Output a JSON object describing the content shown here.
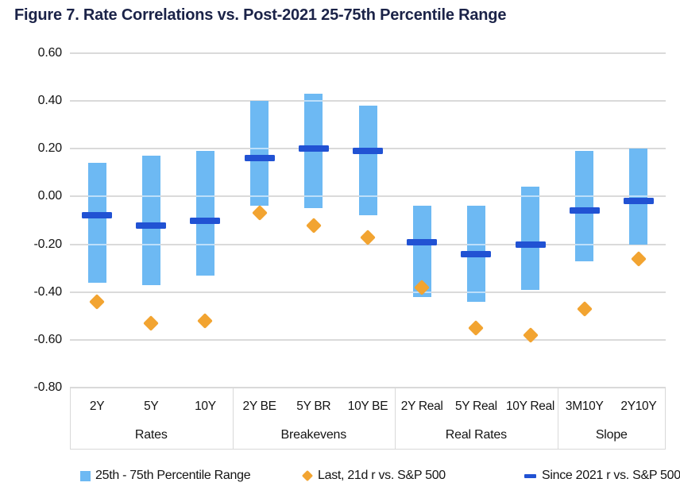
{
  "title": "Figure 7. Rate Correlations vs. Post-2021 25-75th Percentile Range",
  "colors": {
    "bar": "#6db9f3",
    "dash": "#2152d3",
    "diamond": "#f2a431",
    "title_text": "#1b2348",
    "axis_text": "#141414",
    "gridline": "#dadada",
    "box_border": "#d9d9d9"
  },
  "chart_data": {
    "type": "bar",
    "subtype": "floating-range-bars-with-point-markers",
    "title": "Figure 7. Rate Correlations vs. Post-2021 25-75th Percentile Range",
    "categories": [
      "2Y",
      "5Y",
      "10Y",
      "2Y BE",
      "5Y BR",
      "10Y BE",
      "2Y Real",
      "5Y Real",
      "10Y Real",
      "3M10Y",
      "2Y10Y"
    ],
    "groups": [
      {
        "label": "Rates",
        "span": 3
      },
      {
        "label": "Breakevens",
        "span": 3
      },
      {
        "label": "Real Rates",
        "span": 3
      },
      {
        "label": "Slope",
        "span": 2
      }
    ],
    "series": [
      {
        "name": "25th - 75th Percentile Range",
        "marker": "range-bar",
        "high": [
          0.14,
          0.17,
          0.19,
          0.4,
          0.43,
          0.38,
          -0.04,
          -0.04,
          0.04,
          0.19,
          0.2
        ],
        "low": [
          -0.36,
          -0.37,
          -0.33,
          -0.04,
          -0.05,
          -0.08,
          -0.42,
          -0.44,
          -0.39,
          -0.27,
          -0.2
        ]
      },
      {
        "name": "Last, 21d r vs. S&P 500",
        "marker": "diamond",
        "values": [
          -0.44,
          -0.53,
          -0.52,
          -0.07,
          -0.12,
          -0.17,
          -0.38,
          -0.55,
          -0.58,
          -0.47,
          -0.26
        ]
      },
      {
        "name": "Since 2021 r vs. S&P 500",
        "marker": "dash",
        "values": [
          -0.08,
          -0.12,
          -0.1,
          0.16,
          0.2,
          0.19,
          -0.19,
          -0.24,
          -0.2,
          -0.06,
          -0.02
        ]
      }
    ],
    "ylim": [
      -0.8,
      0.6
    ],
    "ytick_labels": [
      "0.60",
      "0.40",
      "0.20",
      "0.00",
      "-0.20",
      "-0.40",
      "-0.60",
      "-0.80"
    ],
    "ytick_values": [
      0.6,
      0.4,
      0.2,
      0.0,
      -0.2,
      -0.4,
      -0.6,
      -0.8
    ],
    "grid": true,
    "xlabel": "",
    "ylabel": "",
    "legend_position": "bottom"
  },
  "legend": {
    "items": [
      {
        "label": "25th - 75th Percentile Range",
        "marker": "square",
        "color": "#6db9f3"
      },
      {
        "label": "Last, 21d r vs. S&P 500",
        "marker": "diamond",
        "color": "#f2a431"
      },
      {
        "label": "Since 2021 r vs. S&P 500",
        "marker": "dash",
        "color": "#2152d3"
      }
    ]
  }
}
